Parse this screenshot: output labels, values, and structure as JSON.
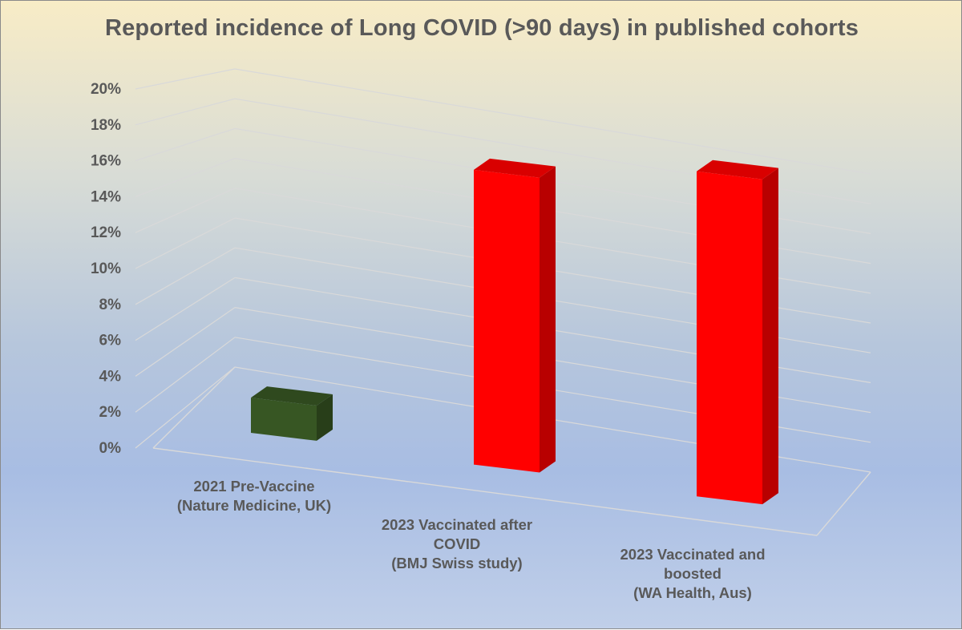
{
  "chart_data": {
    "type": "bar",
    "title": "Reported incidence of Long COVID (>90 days) in published cohorts",
    "xlabel": "",
    "ylabel": "",
    "ylim": [
      0,
      20
    ],
    "yticks": [
      "0%",
      "2%",
      "4%",
      "6%",
      "8%",
      "10%",
      "12%",
      "14%",
      "16%",
      "18%",
      "20%"
    ],
    "categories": [
      [
        "2021 Pre-Vaccine",
        "(Nature Medicine, UK)"
      ],
      [
        "2023 Vaccinated after",
        "COVID",
        "(BMJ Swiss study)"
      ],
      [
        "2023 Vaccinated and",
        "boosted",
        "(WA Health, Aus)"
      ]
    ],
    "values": [
      2.1,
      17.6,
      19.4
    ],
    "colors": [
      "#375623",
      "#ff0000",
      "#ff0000"
    ],
    "grid": true,
    "legend": "none"
  }
}
